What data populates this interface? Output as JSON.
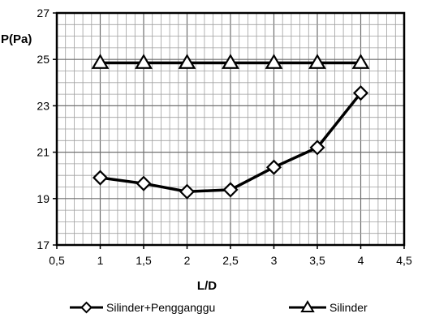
{
  "chart_data": {
    "type": "line",
    "title": "",
    "xlabel": "L/D",
    "ylabel": "P(Pa)",
    "xlim": [
      0.5,
      4.5
    ],
    "ylim": [
      17,
      27
    ],
    "x_ticks": [
      "0,5",
      "1",
      "1,5",
      "2",
      "2,5",
      "3",
      "3,5",
      "4",
      "4,5"
    ],
    "y_ticks": [
      "17",
      "19",
      "21",
      "23",
      "25",
      "27"
    ],
    "grid": true,
    "legend_position": "bottom",
    "x": [
      1,
      1.5,
      2,
      2.5,
      3,
      3.5,
      4
    ],
    "series": [
      {
        "name": "Silinder+Pengganggu",
        "marker": "diamond",
        "color": "#000000",
        "values": [
          19.9,
          19.65,
          19.3,
          19.38,
          20.35,
          21.2,
          23.55
        ]
      },
      {
        "name": "Silinder",
        "marker": "triangle",
        "color": "#000000",
        "values": [
          24.85,
          24.85,
          24.85,
          24.85,
          24.85,
          24.85,
          24.85
        ]
      }
    ]
  }
}
